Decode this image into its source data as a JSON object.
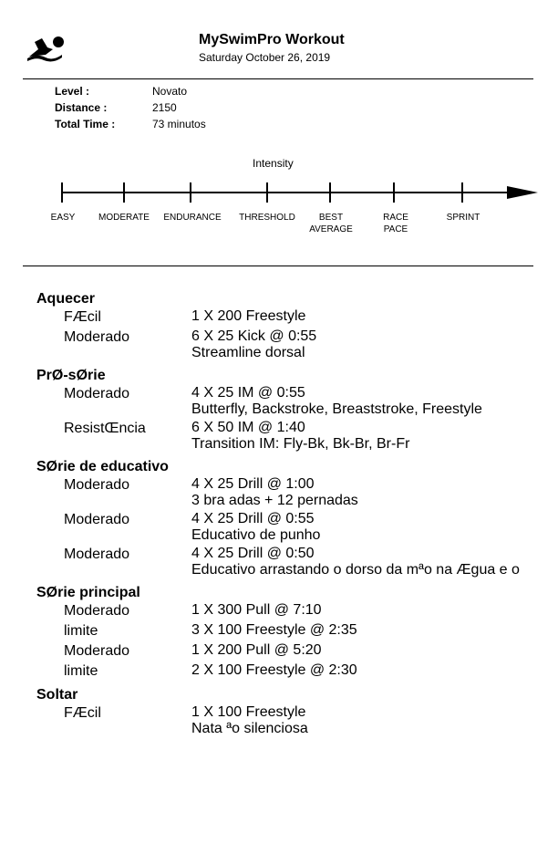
{
  "header": {
    "logo_icon": "swimmer-icon",
    "title": "MySwimPro Workout",
    "date": "Saturday October 26, 2019"
  },
  "meta": [
    {
      "label": "Level :",
      "value": "Novato"
    },
    {
      "label": "Distance :",
      "value": "2150"
    },
    {
      "label": "Total Time :",
      "value": "73 minutos"
    }
  ],
  "intensity_scale": {
    "title": "Intensity",
    "levels": [
      "EASY",
      "MODERATE",
      "ENDURANCE",
      "THRESHOLD",
      "BEST\nAVERAGE",
      "RACE\nPACE",
      "SPRINT"
    ]
  },
  "sections": [
    {
      "title": "Aquecer",
      "items": [
        {
          "intensity": "FÆcil",
          "lines": [
            "1 X 200 Freestyle"
          ]
        },
        {
          "intensity": "Moderado",
          "lines": [
            "6 X 25 Kick @ 0:55",
            "Streamline dorsal"
          ]
        }
      ]
    },
    {
      "title": "PrØ-sØrie",
      "items": [
        {
          "intensity": "Moderado",
          "lines": [
            "4 X 25 IM @ 0:55",
            "Butterfly, Backstroke, Breaststroke, Freestyle"
          ]
        },
        {
          "intensity": "ResistŒncia",
          "lines": [
            "6 X 50 IM @ 1:40",
            "Transition IM: Fly-Bk, Bk-Br, Br-Fr"
          ]
        }
      ]
    },
    {
      "title": "SØrie de educativo",
      "items": [
        {
          "intensity": "Moderado",
          "lines": [
            "4 X 25 Drill @ 1:00",
            "3 bra adas + 12 pernadas"
          ]
        },
        {
          "intensity": "Moderado",
          "lines": [
            "4 X 25 Drill @ 0:55",
            "Educativo de punho"
          ]
        },
        {
          "intensity": "Moderado",
          "lines": [
            "4 X 25 Drill @ 0:50",
            "Educativo arrastando o dorso da mªo na Ægua e o"
          ]
        }
      ]
    },
    {
      "title": "SØrie principal",
      "items": [
        {
          "intensity": "Moderado",
          "lines": [
            "1 X 300 Pull @ 7:10"
          ]
        },
        {
          "intensity": "limite",
          "lines": [
            "3 X 100 Freestyle @ 2:35"
          ]
        },
        {
          "intensity": "Moderado",
          "lines": [
            "1 X 200 Pull @ 5:20"
          ]
        },
        {
          "intensity": "limite",
          "lines": [
            "2 X 100 Freestyle @ 2:30"
          ]
        }
      ]
    },
    {
      "title": "Soltar",
      "items": [
        {
          "intensity": "FÆcil",
          "lines": [
            "1 X 100 Freestyle",
            "Nata ªo silenciosa"
          ]
        }
      ]
    }
  ]
}
